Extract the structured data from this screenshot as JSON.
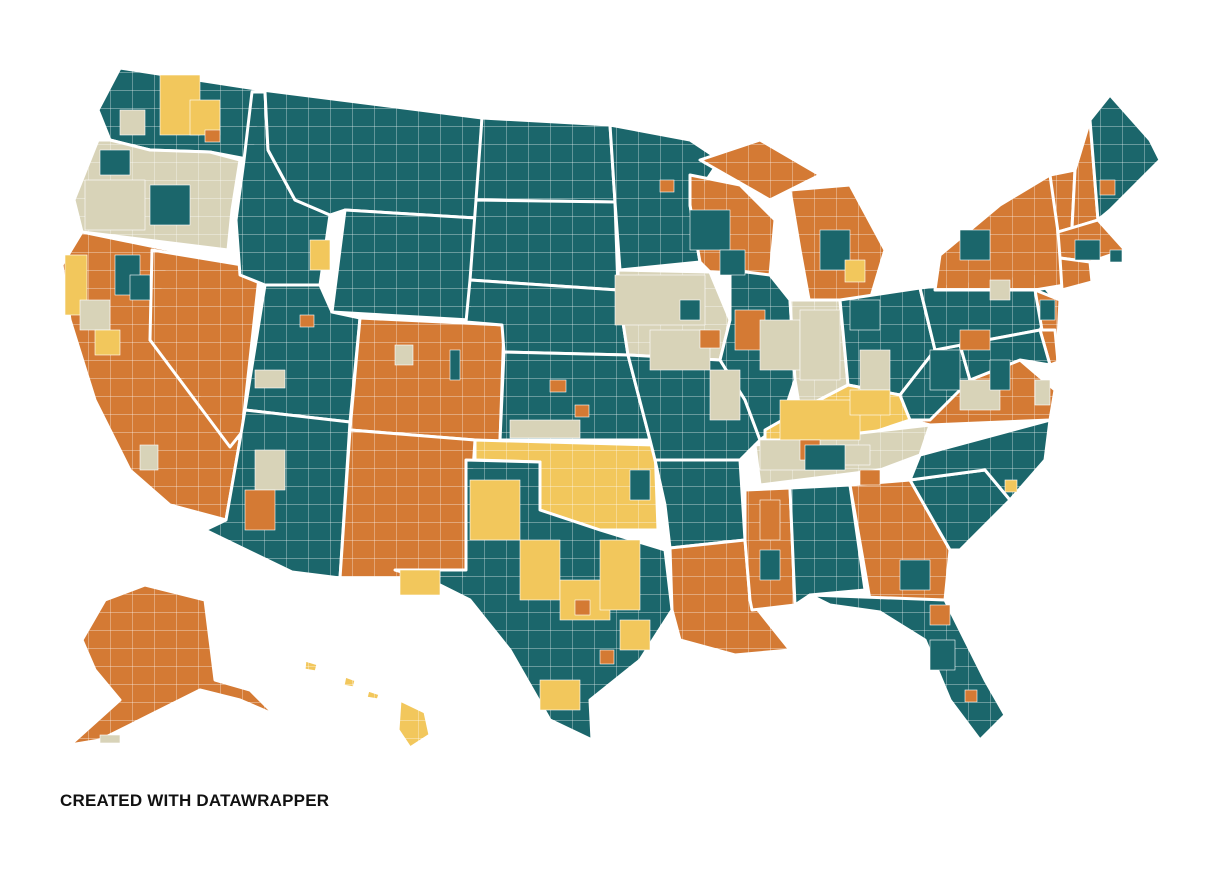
{
  "map": {
    "type": "choropleth",
    "geography": "US counties",
    "legend": "none",
    "palette": {
      "teal": "#1b666b",
      "orange": "#d47a34",
      "yellow": "#f2c75c",
      "beige": "#d8d3b8",
      "no_data": "#e0e0e0",
      "border": "#ffffff"
    },
    "states": [
      {
        "id": "WA",
        "fill": "teal"
      },
      {
        "id": "OR",
        "fill": "beige"
      },
      {
        "id": "CA",
        "fill": "orange"
      },
      {
        "id": "NV",
        "fill": "orange"
      },
      {
        "id": "ID",
        "fill": "teal"
      },
      {
        "id": "MT",
        "fill": "teal"
      },
      {
        "id": "WY",
        "fill": "teal"
      },
      {
        "id": "UT",
        "fill": "teal"
      },
      {
        "id": "AZ",
        "fill": "teal"
      },
      {
        "id": "CO",
        "fill": "orange"
      },
      {
        "id": "NM",
        "fill": "orange"
      },
      {
        "id": "ND",
        "fill": "teal"
      },
      {
        "id": "SD",
        "fill": "teal"
      },
      {
        "id": "NE",
        "fill": "teal"
      },
      {
        "id": "KS",
        "fill": "teal"
      },
      {
        "id": "OK",
        "fill": "yellow"
      },
      {
        "id": "TX",
        "fill": "teal"
      },
      {
        "id": "MN",
        "fill": "teal"
      },
      {
        "id": "IA",
        "fill": "beige"
      },
      {
        "id": "MO",
        "fill": "teal"
      },
      {
        "id": "AR",
        "fill": "teal"
      },
      {
        "id": "LA",
        "fill": "orange"
      },
      {
        "id": "WI",
        "fill": "orange"
      },
      {
        "id": "IL",
        "fill": "teal"
      },
      {
        "id": "MI",
        "fill": "orange"
      },
      {
        "id": "IN",
        "fill": "beige"
      },
      {
        "id": "OH",
        "fill": "teal"
      },
      {
        "id": "KY",
        "fill": "yellow"
      },
      {
        "id": "TN",
        "fill": "beige"
      },
      {
        "id": "MS",
        "fill": "orange"
      },
      {
        "id": "AL",
        "fill": "teal"
      },
      {
        "id": "GA",
        "fill": "orange"
      },
      {
        "id": "FL",
        "fill": "teal"
      },
      {
        "id": "SC",
        "fill": "teal"
      },
      {
        "id": "NC",
        "fill": "teal"
      },
      {
        "id": "VA",
        "fill": "orange"
      },
      {
        "id": "WV",
        "fill": "teal"
      },
      {
        "id": "PA",
        "fill": "teal"
      },
      {
        "id": "NY",
        "fill": "orange"
      },
      {
        "id": "VT",
        "fill": "orange"
      },
      {
        "id": "NH",
        "fill": "orange"
      },
      {
        "id": "ME",
        "fill": "teal"
      },
      {
        "id": "MA",
        "fill": "orange"
      },
      {
        "id": "CT",
        "fill": "orange"
      },
      {
        "id": "NJ",
        "fill": "orange"
      },
      {
        "id": "DE",
        "fill": "orange"
      },
      {
        "id": "MD",
        "fill": "teal"
      },
      {
        "id": "AK",
        "fill": "orange"
      },
      {
        "id": "HI",
        "fill": "yellow"
      }
    ]
  },
  "footer": {
    "credit": "CREATED WITH DATAWRAPPER"
  }
}
